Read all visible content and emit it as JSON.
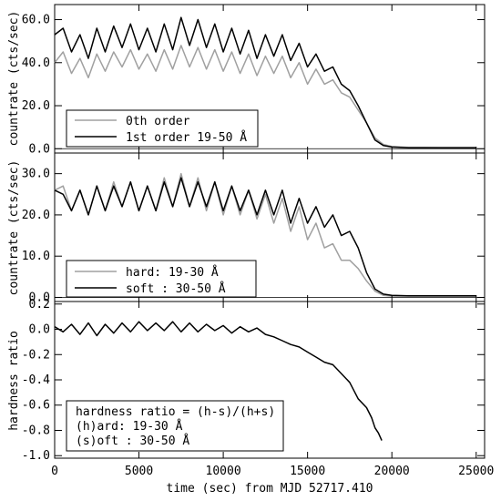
{
  "chart_data": [
    {
      "type": "line",
      "ylabel": "countrate (cts/sec)",
      "xlim": [
        0,
        25500
      ],
      "ylim": [
        -2,
        67
      ],
      "grid": false,
      "legend_position": "bottom-left",
      "yticks": [
        {
          "value": 0,
          "label": "0.0"
        },
        {
          "value": 20,
          "label": "20.0"
        },
        {
          "value": 40,
          "label": "40.0"
        },
        {
          "value": 60,
          "label": "60.0"
        }
      ],
      "series": [
        {
          "name": "0th order",
          "color": "#a0a0a0",
          "x": [
            0,
            500,
            1000,
            1500,
            2000,
            2500,
            3000,
            3500,
            4000,
            4500,
            5000,
            5500,
            6000,
            6500,
            7000,
            7500,
            8000,
            8500,
            9000,
            9500,
            10000,
            10500,
            11000,
            11500,
            12000,
            12500,
            13000,
            13500,
            14000,
            14500,
            15000,
            15500,
            16000,
            16500,
            17000,
            17500,
            18000,
            18500,
            19000,
            19500,
            20000,
            21000,
            22000,
            23000,
            24000,
            25000
          ],
          "y": [
            40,
            45,
            35,
            42,
            33,
            44,
            36,
            45,
            38,
            46,
            37,
            44,
            36,
            46,
            37,
            48,
            38,
            47,
            37,
            46,
            36,
            45,
            35,
            44,
            34,
            43,
            35,
            43,
            33,
            40,
            30,
            37,
            30,
            32,
            26,
            24,
            18,
            12,
            5,
            2,
            1,
            0.6,
            0.6,
            0.5,
            0.5,
            0.5
          ]
        },
        {
          "name": "1st order 19-50 Å",
          "color": "#000000",
          "x": [
            0,
            500,
            1000,
            1500,
            2000,
            2500,
            3000,
            3500,
            4000,
            4500,
            5000,
            5500,
            6000,
            6500,
            7000,
            7500,
            8000,
            8500,
            9000,
            9500,
            10000,
            10500,
            11000,
            11500,
            12000,
            12500,
            13000,
            13500,
            14000,
            14500,
            15000,
            15500,
            16000,
            16500,
            17000,
            17500,
            18000,
            18500,
            19000,
            19500,
            20000,
            21000,
            22000,
            23000,
            24000,
            25000
          ],
          "y": [
            53,
            56,
            45,
            53,
            42,
            56,
            45,
            57,
            47,
            58,
            46,
            56,
            45,
            58,
            46,
            61,
            48,
            60,
            47,
            58,
            45,
            56,
            44,
            55,
            42,
            53,
            43,
            53,
            41,
            49,
            38,
            44,
            36,
            38,
            30,
            27,
            20,
            12,
            4,
            1.5,
            0.8,
            0.5,
            0.5,
            0.5,
            0.5,
            0.5
          ]
        }
      ]
    },
    {
      "type": "line",
      "ylabel": "countrate (cts/sec)",
      "xlim": [
        0,
        25500
      ],
      "ylim": [
        -1,
        35
      ],
      "grid": false,
      "legend_position": "bottom-left",
      "yticks": [
        {
          "value": 0,
          "label": "0.0"
        },
        {
          "value": 10,
          "label": "10.0"
        },
        {
          "value": 20,
          "label": "20.0"
        },
        {
          "value": 30,
          "label": "30.0"
        }
      ],
      "series": [
        {
          "name": "hard: 19-30 Å",
          "color": "#a0a0a0",
          "x": [
            0,
            500,
            1000,
            1500,
            2000,
            2500,
            3000,
            3500,
            4000,
            4500,
            5000,
            5500,
            6000,
            6500,
            7000,
            7500,
            8000,
            8500,
            9000,
            9500,
            10000,
            10500,
            11000,
            11500,
            12000,
            12500,
            13000,
            13500,
            14000,
            14500,
            15000,
            15500,
            16000,
            16500,
            17000,
            17500,
            18000,
            18500,
            19000,
            19500,
            20000,
            21000,
            22000,
            23000,
            24000,
            25000
          ],
          "y": [
            26,
            27,
            21,
            26,
            20,
            27,
            21,
            28,
            22,
            28,
            21,
            27,
            21,
            29,
            22,
            30,
            22,
            29,
            21,
            28,
            20,
            27,
            20,
            26,
            19,
            25,
            18,
            24,
            16,
            22,
            14,
            18,
            12,
            13,
            9,
            9,
            7,
            4,
            1.5,
            0.5,
            0.3,
            0.3,
            0.3,
            0.3,
            0.3,
            0.3
          ]
        },
        {
          "name": "soft : 30-50 Å",
          "color": "#000000",
          "x": [
            0,
            500,
            1000,
            1500,
            2000,
            2500,
            3000,
            3500,
            4000,
            4500,
            5000,
            5500,
            6000,
            6500,
            7000,
            7500,
            8000,
            8500,
            9000,
            9500,
            10000,
            10500,
            11000,
            11500,
            12000,
            12500,
            13000,
            13500,
            14000,
            14500,
            15000,
            15500,
            16000,
            16500,
            17000,
            17500,
            18000,
            18500,
            19000,
            19500,
            20000,
            21000,
            22000,
            23000,
            24000,
            25000
          ],
          "y": [
            26,
            25,
            21,
            26,
            20,
            27,
            21,
            27,
            22,
            28,
            21,
            27,
            21,
            28,
            22,
            29,
            22,
            28,
            22,
            28,
            21,
            27,
            21,
            26,
            20,
            26,
            20,
            26,
            18,
            24,
            18,
            22,
            17,
            20,
            15,
            16,
            12,
            6,
            2,
            0.8,
            0.5,
            0.4,
            0.4,
            0.4,
            0.4,
            0.4
          ]
        }
      ]
    },
    {
      "type": "line",
      "xlabel": "time (sec) from MJD 52717.410",
      "ylabel": "hardness ratio",
      "xlim": [
        0,
        25500
      ],
      "ylim": [
        -1.02,
        0.22
      ],
      "grid": false,
      "legend_position": "bottom-left",
      "xticks": [
        {
          "value": 0,
          "label": "0"
        },
        {
          "value": 5000,
          "label": "5000"
        },
        {
          "value": 10000,
          "label": "10000"
        },
        {
          "value": 15000,
          "label": "15000"
        },
        {
          "value": 20000,
          "label": "20000"
        },
        {
          "value": 25000,
          "label": "25000"
        }
      ],
      "yticks": [
        {
          "value": 0.2,
          "label": "0.2"
        },
        {
          "value": 0.0,
          "label": "0.0"
        },
        {
          "value": -0.2,
          "label": "-0.2"
        },
        {
          "value": -0.4,
          "label": "-0.4"
        },
        {
          "value": -0.6,
          "label": "-0.6"
        },
        {
          "value": -0.8,
          "label": "-0.8"
        },
        {
          "value": -1.0,
          "label": "-1.0"
        }
      ],
      "legend_lines": [
        "hardness ratio = (h-s)/(h+s)",
        "(h)ard: 19-30 Å",
        "(s)oft : 30-50 Å"
      ],
      "series": [
        {
          "color": "#000000",
          "x": [
            0,
            500,
            1000,
            1500,
            2000,
            2500,
            3000,
            3500,
            4000,
            4500,
            5000,
            5500,
            6000,
            6500,
            7000,
            7500,
            8000,
            8500,
            9000,
            9500,
            10000,
            10500,
            11000,
            11500,
            12000,
            12500,
            13000,
            13500,
            14000,
            14500,
            15000,
            15500,
            16000,
            16500,
            17000,
            17500,
            18000,
            18500,
            18800,
            19000,
            19200,
            19400
          ],
          "y": [
            0.02,
            -0.02,
            0.04,
            -0.04,
            0.05,
            -0.05,
            0.04,
            -0.03,
            0.05,
            -0.02,
            0.06,
            -0.01,
            0.05,
            -0.01,
            0.06,
            -0.02,
            0.05,
            -0.02,
            0.04,
            -0.01,
            0.03,
            -0.03,
            0.02,
            -0.02,
            0.01,
            -0.04,
            -0.06,
            -0.09,
            -0.12,
            -0.14,
            -0.18,
            -0.22,
            -0.26,
            -0.28,
            -0.35,
            -0.42,
            -0.55,
            -0.62,
            -0.7,
            -0.78,
            -0.82,
            -0.88
          ]
        }
      ]
    }
  ]
}
